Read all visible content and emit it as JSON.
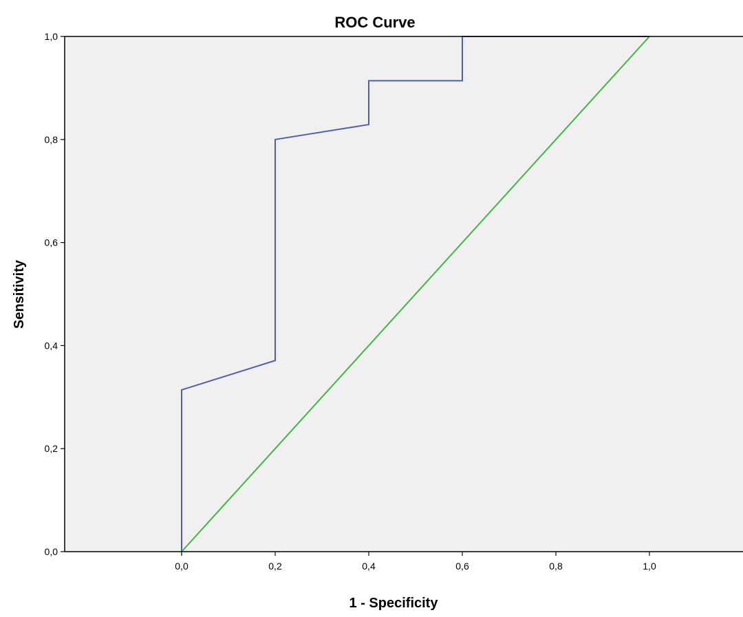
{
  "chart_data": {
    "type": "line",
    "title": "ROC Curve",
    "xlabel": "1 - Specificity",
    "ylabel": "Sensitivity",
    "xlim": [
      -0.25,
      1.2
    ],
    "ylim": [
      0,
      1
    ],
    "x_ticks": [
      "0,0",
      "0,2",
      "0,4",
      "0,6",
      "0,8",
      "1,0"
    ],
    "x_tick_values": [
      0,
      0.2,
      0.4,
      0.6,
      0.8,
      1.0
    ],
    "y_ticks": [
      "0,0",
      "0,2",
      "0,4",
      "0,6",
      "0,8",
      "1,0"
    ],
    "y_tick_values": [
      0,
      0.2,
      0.4,
      0.6,
      0.8,
      1.0
    ],
    "grid": false,
    "background_color": "#f0f0f0",
    "series": [
      {
        "color": "#4a5fb5",
        "x": [
          0,
          0,
          0.2,
          0.2,
          0.4,
          0.4,
          0.6,
          0.6,
          1.0
        ],
        "y": [
          0,
          0.314,
          0.371,
          0.8,
          0.829,
          0.914,
          0.914,
          1.0,
          1.0
        ]
      },
      {
        "color": "#3cb83c",
        "x": [
          0,
          1.0
        ],
        "y": [
          0,
          1.0
        ]
      }
    ]
  }
}
